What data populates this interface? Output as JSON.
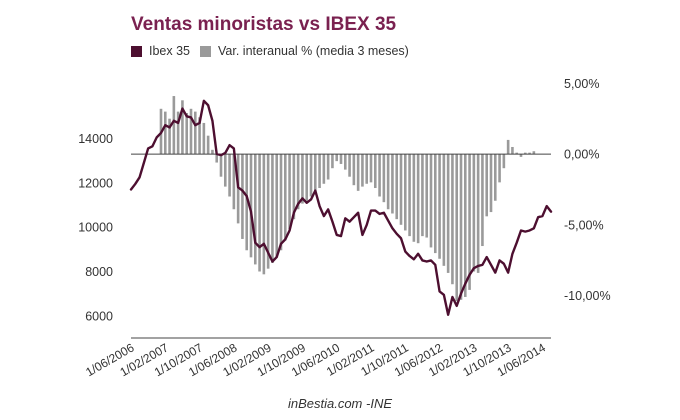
{
  "chart_data": {
    "type": "bar+line",
    "title": "Ventas minoristas vs IBEX 35",
    "legend": [
      {
        "name": "Ibex 35",
        "color": "#4d0f30"
      },
      {
        "name": "Var. interanual % (media 3 meses)",
        "color": "#9a9a9a"
      }
    ],
    "left_axis": {
      "ticks": [
        6000,
        8000,
        10000,
        12000,
        14000
      ],
      "tick_labels": [
        "6000",
        "8000",
        "10000",
        "12000",
        "14000"
      ],
      "range": [
        5000,
        17000
      ]
    },
    "right_axis": {
      "ticks": [
        5,
        0,
        -5,
        -10
      ],
      "tick_labels": [
        "5,00%",
        "0,00%",
        "-5,00%",
        "-10,00%"
      ],
      "range": [
        -13,
        5.8
      ]
    },
    "x_labels": [
      "1/06/2006",
      "1/02/2007",
      "1/10/2007",
      "1/06/2008",
      "1/02/2009",
      "1/10/2009",
      "1/06/2010",
      "1/02/2011",
      "1/10/2011",
      "1/06/2012",
      "1/02/2013",
      "1/10/2013",
      "1/06/2014"
    ],
    "x_range": [
      "2006-06",
      "2014-08"
    ],
    "series": [
      {
        "name": "Ibex 35",
        "kind": "line",
        "axis": "left",
        "points": [
          [
            "2006-06",
            11700
          ],
          [
            "2006-07",
            11950
          ],
          [
            "2006-08",
            12250
          ],
          [
            "2006-09",
            12900
          ],
          [
            "2006-10",
            13550
          ],
          [
            "2006-11",
            13650
          ],
          [
            "2006-12",
            14050
          ],
          [
            "2007-01",
            14250
          ],
          [
            "2007-02",
            14600
          ],
          [
            "2007-03",
            14500
          ],
          [
            "2007-04",
            14800
          ],
          [
            "2007-05",
            14700
          ],
          [
            "2007-06",
            15350
          ],
          [
            "2007-07",
            15000
          ],
          [
            "2007-08",
            14950
          ],
          [
            "2007-09",
            14600
          ],
          [
            "2007-10",
            14700
          ],
          [
            "2007-11",
            15700
          ],
          [
            "2007-12",
            15500
          ],
          [
            "2008-01",
            14800
          ],
          [
            "2008-02",
            13300
          ],
          [
            "2008-03",
            13250
          ],
          [
            "2008-04",
            13350
          ],
          [
            "2008-05",
            13700
          ],
          [
            "2008-06",
            13550
          ],
          [
            "2008-07",
            11800
          ],
          [
            "2008-08",
            11650
          ],
          [
            "2008-09",
            11400
          ],
          [
            "2008-10",
            10700
          ],
          [
            "2008-11",
            9300
          ],
          [
            "2008-12",
            9100
          ],
          [
            "2009-01",
            9250
          ],
          [
            "2009-02",
            8850
          ],
          [
            "2009-03",
            8450
          ],
          [
            "2009-04",
            8650
          ],
          [
            "2009-05",
            9250
          ],
          [
            "2009-06",
            9450
          ],
          [
            "2009-07",
            9850
          ],
          [
            "2009-08",
            10650
          ],
          [
            "2009-09",
            11050
          ],
          [
            "2009-10",
            11300
          ],
          [
            "2009-11",
            11100
          ],
          [
            "2009-12",
            11250
          ],
          [
            "2010-01",
            11650
          ],
          [
            "2010-02",
            10950
          ],
          [
            "2010-03",
            10500
          ],
          [
            "2010-04",
            10800
          ],
          [
            "2010-05",
            10250
          ],
          [
            "2010-06",
            9650
          ],
          [
            "2010-07",
            9600
          ],
          [
            "2010-08",
            10400
          ],
          [
            "2010-09",
            10250
          ],
          [
            "2010-10",
            10450
          ],
          [
            "2010-11",
            10650
          ],
          [
            "2010-12",
            9650
          ],
          [
            "2011-01",
            10100
          ],
          [
            "2011-02",
            10750
          ],
          [
            "2011-03",
            10750
          ],
          [
            "2011-04",
            10600
          ],
          [
            "2011-05",
            10650
          ],
          [
            "2011-06",
            10300
          ],
          [
            "2011-07",
            9950
          ],
          [
            "2011-08",
            9700
          ],
          [
            "2011-09",
            9500
          ],
          [
            "2011-10",
            8900
          ],
          [
            "2011-11",
            8700
          ],
          [
            "2011-12",
            8550
          ],
          [
            "2012-01",
            8800
          ],
          [
            "2012-02",
            8500
          ],
          [
            "2012-03",
            8450
          ],
          [
            "2012-04",
            8500
          ],
          [
            "2012-05",
            8300
          ],
          [
            "2012-06",
            7100
          ],
          [
            "2012-07",
            6950
          ],
          [
            "2012-08",
            6050
          ],
          [
            "2012-09",
            6850
          ],
          [
            "2012-10",
            6450
          ],
          [
            "2012-11",
            7000
          ],
          [
            "2012-12",
            7450
          ],
          [
            "2013-01",
            7850
          ],
          [
            "2013-02",
            8150
          ],
          [
            "2013-03",
            8250
          ],
          [
            "2013-04",
            8300
          ],
          [
            "2013-05",
            8650
          ],
          [
            "2013-06",
            8300
          ],
          [
            "2013-07",
            7950
          ],
          [
            "2013-08",
            8500
          ],
          [
            "2013-09",
            8350
          ],
          [
            "2013-10",
            7950
          ],
          [
            "2013-11",
            8800
          ],
          [
            "2013-12",
            9300
          ],
          [
            "2014-01",
            9850
          ],
          [
            "2014-02",
            9800
          ],
          [
            "2014-03",
            9850
          ],
          [
            "2014-04",
            9950
          ],
          [
            "2014-05",
            10450
          ],
          [
            "2014-06",
            10500
          ],
          [
            "2014-07",
            10950
          ],
          [
            "2014-08",
            10700
          ]
        ]
      },
      {
        "name": "Var. interanual % (media 3 meses)",
        "kind": "bar",
        "axis": "right",
        "start": "2007-01",
        "values": [
          3.2,
          3.0,
          2.5,
          4.1,
          3.0,
          3.8,
          2.9,
          3.2,
          3.0,
          2.6,
          2.2,
          1.3,
          0.3,
          -0.6,
          -1.6,
          -2.3,
          -3.0,
          -3.9,
          -4.9,
          -6.0,
          -6.8,
          -7.3,
          -7.8,
          -8.3,
          -8.5,
          -8.1,
          -7.7,
          -7.3,
          -6.8,
          -6.1,
          -5.3,
          -4.6,
          -3.9,
          -3.5,
          -3.3,
          -3.0,
          -2.6,
          -2.4,
          -2.1,
          -1.8,
          -1.0,
          -0.5,
          -0.7,
          -1.1,
          -1.6,
          -2.2,
          -2.6,
          -2.3,
          -2.1,
          -2.0,
          -2.4,
          -3.0,
          -3.4,
          -3.9,
          -4.2,
          -4.6,
          -5.0,
          -5.4,
          -5.8,
          -6.2,
          -6.3,
          -5.8,
          -5.9,
          -6.6,
          -7.0,
          -7.4,
          -7.9,
          -8.4,
          -9.2,
          -10.4,
          -10.3,
          -10.1,
          -9.6,
          -8.3,
          -8.4,
          -6.5,
          -4.4,
          -4.1,
          -3.3,
          -2.0,
          -1.0,
          1.0,
          0.5,
          0.1,
          -0.2,
          0.1,
          0.1,
          0.2
        ]
      }
    ],
    "source": "inBestia.com -INE"
  },
  "colors": {
    "title": "#7a2150",
    "line": "#4d0f30",
    "bars": "#9a9a9a",
    "axis": "#444444",
    "text": "#333333"
  }
}
